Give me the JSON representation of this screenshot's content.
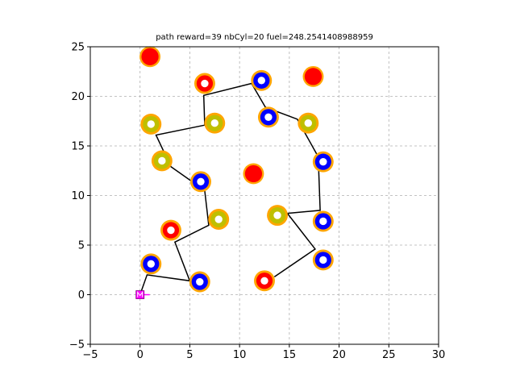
{
  "chart_data": {
    "type": "scatter",
    "title": "path reward=39 nbCyl=20 fuel=248.2541408988959",
    "xlabel": "",
    "ylabel": "",
    "xlim": [
      -5,
      30
    ],
    "ylim": [
      -5,
      25
    ],
    "xticks": [
      "−5",
      "0",
      "5",
      "10",
      "15",
      "20",
      "25",
      "30"
    ],
    "yticks": [
      "−5",
      "0",
      "5",
      "10",
      "15",
      "20",
      "25"
    ],
    "grid": true,
    "colors": {
      "ring": "#ffa500",
      "red": "#ff0000",
      "blue": "#0000ff",
      "olive": "#bfbf00",
      "path": "#000000",
      "start": "#ff00ff",
      "center": "#ffffff"
    },
    "cylinders": [
      {
        "x": 1.0,
        "y": 24.0,
        "type": "red",
        "visited": false
      },
      {
        "x": 6.5,
        "y": 21.3,
        "type": "red",
        "visited": true
      },
      {
        "x": 12.2,
        "y": 21.6,
        "type": "blue",
        "visited": true
      },
      {
        "x": 17.4,
        "y": 22.0,
        "type": "red",
        "visited": false
      },
      {
        "x": 1.1,
        "y": 17.2,
        "type": "olive",
        "visited": true
      },
      {
        "x": 7.5,
        "y": 17.3,
        "type": "olive",
        "visited": true
      },
      {
        "x": 12.9,
        "y": 17.9,
        "type": "blue",
        "visited": true
      },
      {
        "x": 16.9,
        "y": 17.3,
        "type": "olive",
        "visited": true
      },
      {
        "x": 2.2,
        "y": 13.5,
        "type": "olive",
        "visited": true
      },
      {
        "x": 6.1,
        "y": 11.4,
        "type": "blue",
        "visited": true
      },
      {
        "x": 11.4,
        "y": 12.2,
        "type": "red",
        "visited": false
      },
      {
        "x": 18.4,
        "y": 13.4,
        "type": "blue",
        "visited": true
      },
      {
        "x": 3.1,
        "y": 6.5,
        "type": "red",
        "visited": true
      },
      {
        "x": 7.9,
        "y": 7.6,
        "type": "olive",
        "visited": true
      },
      {
        "x": 13.8,
        "y": 8.0,
        "type": "olive",
        "visited": true
      },
      {
        "x": 18.4,
        "y": 7.4,
        "type": "blue",
        "visited": true
      },
      {
        "x": 1.1,
        "y": 3.1,
        "type": "blue",
        "visited": true
      },
      {
        "x": 6.0,
        "y": 1.3,
        "type": "blue",
        "visited": true
      },
      {
        "x": 12.5,
        "y": 1.4,
        "type": "red",
        "visited": true
      },
      {
        "x": 18.4,
        "y": 3.5,
        "type": "blue",
        "visited": true
      }
    ],
    "path": [
      {
        "x": 0,
        "y": 0
      },
      {
        "x": 0.7,
        "y": 2.0
      },
      {
        "x": 5.0,
        "y": 1.4
      },
      {
        "x": 3.5,
        "y": 5.3
      },
      {
        "x": 6.9,
        "y": 7.0
      },
      {
        "x": 6.5,
        "y": 10.5
      },
      {
        "x": 3.1,
        "y": 12.9
      },
      {
        "x": 1.6,
        "y": 16.1
      },
      {
        "x": 6.5,
        "y": 17.1
      },
      {
        "x": 6.4,
        "y": 20.1
      },
      {
        "x": 11.2,
        "y": 21.3
      },
      {
        "x": 12.6,
        "y": 18.9
      },
      {
        "x": 15.8,
        "y": 17.7
      },
      {
        "x": 17.9,
        "y": 13.9
      },
      {
        "x": 18.1,
        "y": 8.5
      },
      {
        "x": 14.8,
        "y": 8.2
      },
      {
        "x": 17.6,
        "y": 4.6
      },
      {
        "x": 13.5,
        "y": 1.8
      }
    ],
    "start": {
      "x": 0,
      "y": 0
    }
  }
}
